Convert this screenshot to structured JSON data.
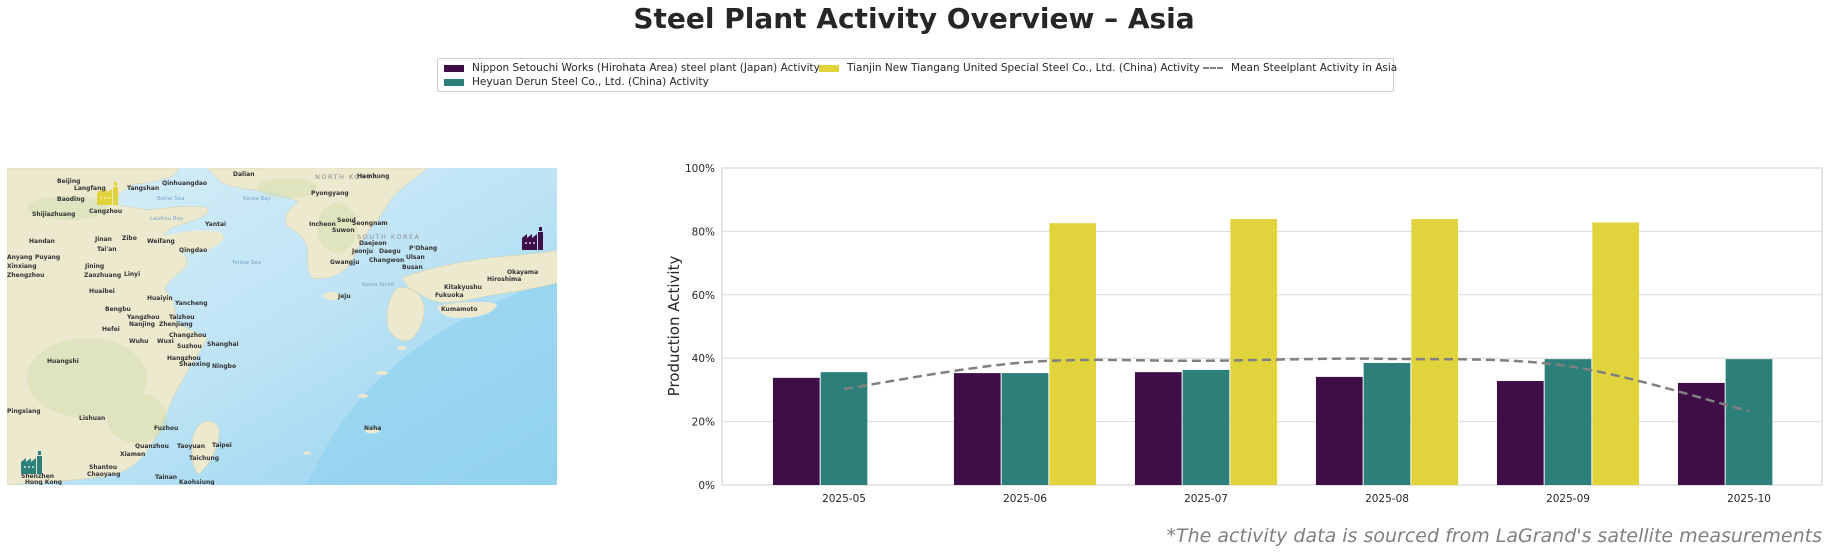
{
  "title": "Steel Plant Activity Overview – Asia",
  "legend": {
    "items": [
      {
        "label": "Nippon Setouchi Works (Hirohata Area) steel plant (Japan) Activity",
        "color": "#3f0d48",
        "kind": "bar"
      },
      {
        "label": "Heyuan Derun Steel Co., Ltd. (China) Activity",
        "color": "#2d8079",
        "kind": "bar"
      },
      {
        "label": "Tianjin New Tiangang United Special Steel Co., Ltd. (China) Activity",
        "color": "#e1d33b",
        "kind": "bar"
      },
      {
        "label": "Mean Steelplant Activity in Asia",
        "color": "#808080",
        "kind": "dashed-line"
      }
    ]
  },
  "map": {
    "labels": {
      "cities": [
        "Beijing",
        "Langfang",
        "Tangshan",
        "Qinhuangdao",
        "Baoding",
        "Cangzhou",
        "Shijiazhuang",
        "Yantai",
        "Handan",
        "Jinan",
        "Zibo",
        "Weifang",
        "Qingdao",
        "Tai'an",
        "Anyang",
        "Puyang",
        "Xinxiang",
        "Zhengzhou",
        "Jining",
        "Zaozhuang",
        "Linyi",
        "Huaibei",
        "Huaiyin",
        "Yancheng",
        "Bengbu",
        "Yangzhou",
        "Taizhou",
        "Nanjing",
        "Zhenjiang",
        "Hefei",
        "Wuhu",
        "Wuxi",
        "Changzhou",
        "Suzhou",
        "Shanghai",
        "Huangshi",
        "Hangzhou",
        "Shaoxing",
        "Ningbo",
        "Lishuan",
        "Pingxiang",
        "Fuzhou",
        "Quanzhou",
        "Xiamen",
        "Taoyuan",
        "Taipei",
        "Taichung",
        "Tainan",
        "Kaohsiung",
        "Shantou",
        "Chaoyang",
        "Shenzhen",
        "Hong Kong",
        "Dalian",
        "Pyongyang",
        "Hamhung",
        "Seoul",
        "Incheon",
        "Suwon",
        "Seongnam",
        "Daejeon",
        "Daegu",
        "Jeonju",
        "Gwangju",
        "Changwon",
        "Ulsan",
        "Busan",
        "P'Ohang",
        "Jeju",
        "Kitakyushu",
        "Fukuoka",
        "Kumamoto",
        "Hiroshima",
        "Okayama",
        "Naha"
      ],
      "seas": [
        "Bohai Sea",
        "Laizhou Bay",
        "Korea Bay",
        "Yellow Sea",
        "Korea Strait"
      ],
      "countries": [
        "NORTH KOREA",
        "SOUTH KOREA"
      ]
    },
    "markers": [
      {
        "name": "Tianjin New Tiangang United Special Steel Co., Ltd.",
        "color": "#e1d33b",
        "icon": "factory-icon"
      },
      {
        "name": "Nippon Setouchi Works (Hirohata Area)",
        "color": "#3f0d48",
        "icon": "factory-icon"
      },
      {
        "name": "Heyuan Derun Steel Co., Ltd.",
        "color": "#2d8079",
        "icon": "factory-icon"
      }
    ]
  },
  "chart_data": {
    "type": "bar",
    "title": "Steel Plant Activity Overview – Asia",
    "xlabel": "",
    "ylabel": "Production Activity",
    "ylim": [
      0,
      100
    ],
    "yticks": [
      0,
      20,
      40,
      60,
      80,
      100
    ],
    "ytick_labels": [
      "0%",
      "20%",
      "40%",
      "60%",
      "80%",
      "100%"
    ],
    "grid": true,
    "legend_position": "top-center",
    "categories": [
      "2025-05",
      "2025-06",
      "2025-07",
      "2025-08",
      "2025-09",
      "2025-10"
    ],
    "series": [
      {
        "name": "Nippon Setouchi Works (Hirohata Area) steel plant (Japan) Activity",
        "type": "bar",
        "color": "#3f0d48",
        "values": [
          33.8,
          35.3,
          35.6,
          34.1,
          32.8,
          32.2
        ]
      },
      {
        "name": "Heyuan Derun Steel Co., Ltd. (China) Activity",
        "type": "bar",
        "color": "#2d8079",
        "values": [
          35.6,
          35.3,
          36.3,
          38.5,
          39.7,
          39.7
        ]
      },
      {
        "name": "Tianjin New Tiangang United Special Steel Co., Ltd. (China) Activity",
        "type": "bar",
        "color": "#e1d33b",
        "values": [
          null,
          82.6,
          83.9,
          83.9,
          82.8,
          null
        ]
      },
      {
        "name": "Mean Steelplant Activity in Asia",
        "type": "line",
        "style": "dashed",
        "color": "#808080",
        "values": [
          30.3,
          38.7,
          39.2,
          39.8,
          37.5,
          23.3
        ]
      }
    ]
  },
  "footnote": "*The activity data is sourced from LaGrand's satellite measurements"
}
